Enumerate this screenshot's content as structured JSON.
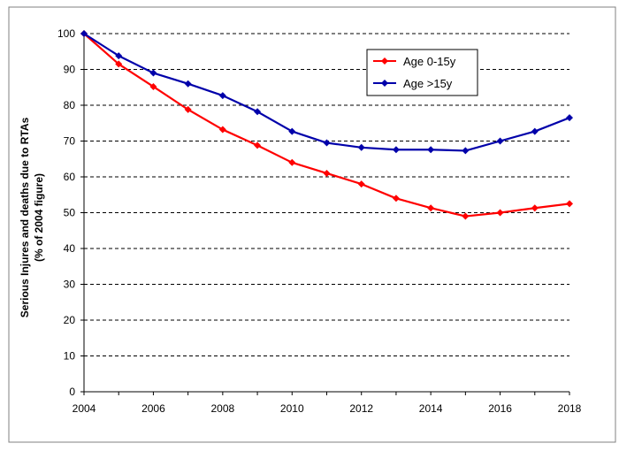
{
  "chart_data": {
    "type": "line",
    "title": "",
    "xlabel": "",
    "ylabel_line1": "Serious Injures and deaths due to RTAs",
    "ylabel_line2": "(% of 2004 figure)",
    "xlim": [
      2004,
      2018
    ],
    "ylim": [
      0,
      100
    ],
    "x_ticks": [
      2004,
      2006,
      2008,
      2010,
      2012,
      2014,
      2016,
      2018
    ],
    "y_ticks": [
      0,
      10,
      20,
      30,
      40,
      50,
      60,
      70,
      80,
      90,
      100
    ],
    "grid": "horizontal dashed",
    "legend_position": "top-right",
    "x": [
      2004,
      2005,
      2006,
      2007,
      2008,
      2009,
      2010,
      2011,
      2012,
      2013,
      2014,
      2015,
      2016,
      2017,
      2018
    ],
    "series": [
      {
        "name": "Age 0-15y",
        "color": "#ff0000",
        "values": [
          100,
          91.5,
          85.2,
          78.8,
          73.2,
          68.8,
          64.0,
          61.0,
          58.0,
          54.0,
          51.3,
          49.0,
          50.0,
          51.3,
          52.5
        ]
      },
      {
        "name": "Age >15y",
        "color": "#0000aa",
        "values": [
          100,
          93.8,
          89.0,
          86.0,
          82.7,
          78.2,
          72.7,
          69.5,
          68.2,
          67.6,
          67.6,
          67.3,
          70.0,
          72.7,
          76.5
        ]
      }
    ]
  }
}
